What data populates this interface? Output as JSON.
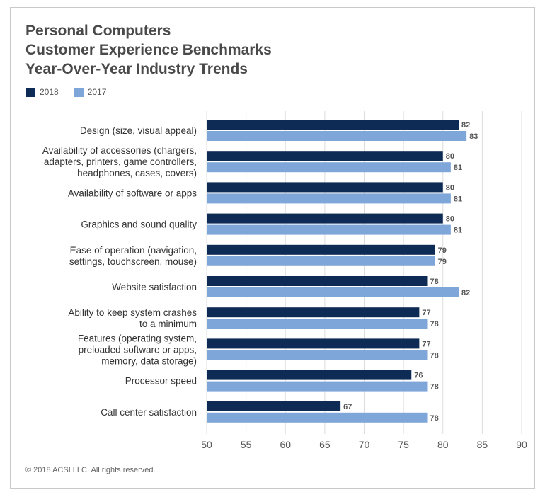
{
  "title_lines": [
    "Personal Computers",
    "Customer Experience Benchmarks",
    "Year-Over-Year Industry Trends"
  ],
  "footer": "© 2018 ACSI LLC. All rights reserved.",
  "colors": {
    "2018": "#0d2b55",
    "2017": "#7fa6d9",
    "grid": "#dddddd",
    "label": "#333333",
    "value": "#555555"
  },
  "chart_data": {
    "type": "bar",
    "orientation": "horizontal",
    "title": "Personal Computers Customer Experience Benchmarks Year-Over-Year Industry Trends",
    "categories": [
      [
        "Design (size, visual appeal)"
      ],
      [
        "Availability of accessories (chargers,",
        "adapters, printers, game controllers,",
        "headphones, cases, covers)"
      ],
      [
        "Availability of software or apps"
      ],
      [
        "Graphics and sound quality"
      ],
      [
        "Ease of operation (navigation,",
        "settings, touchscreen, mouse)"
      ],
      [
        "Website satisfaction"
      ],
      [
        "Ability to keep system crashes",
        "to a minimum"
      ],
      [
        "Features (operating system,",
        "preloaded software or apps,",
        "memory, data storage)"
      ],
      [
        "Processor speed"
      ],
      [
        "Call center satisfaction"
      ]
    ],
    "series": [
      {
        "name": "2018",
        "values": [
          82,
          80,
          80,
          80,
          79,
          78,
          77,
          77,
          76,
          67
        ]
      },
      {
        "name": "2017",
        "values": [
          83,
          81,
          81,
          81,
          79,
          82,
          78,
          78,
          78,
          78
        ]
      }
    ],
    "xlim": [
      50,
      90
    ],
    "xticks": [
      50,
      55,
      60,
      65,
      70,
      75,
      80,
      85,
      90
    ],
    "grid": true,
    "legend": "top-left"
  }
}
